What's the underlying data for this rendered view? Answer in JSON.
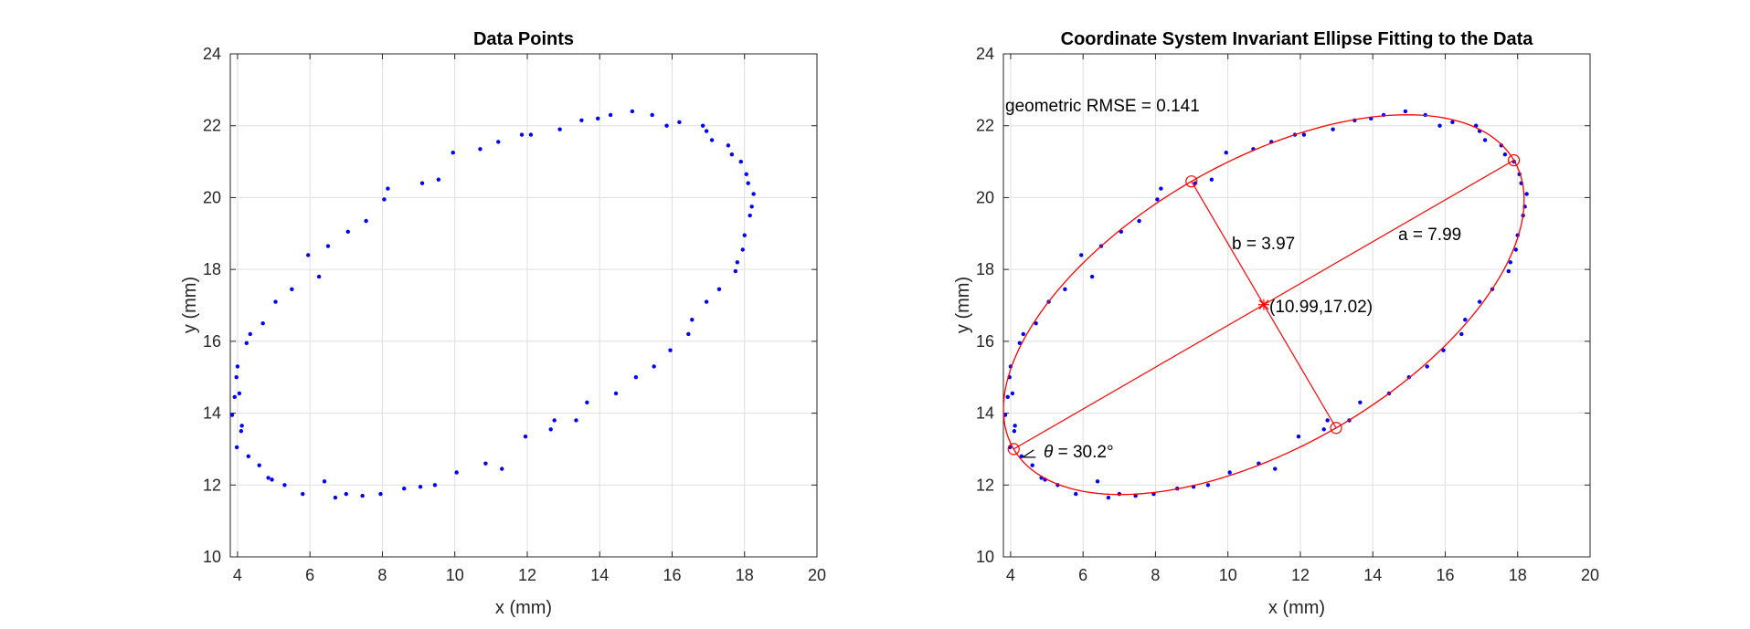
{
  "chart_data": [
    {
      "type": "scatter",
      "title": "Data Points",
      "xlabel": "x (mm)",
      "ylabel": "y (mm)",
      "xlim": [
        3.8,
        20
      ],
      "ylim": [
        10,
        24
      ],
      "xticks": [
        4,
        6,
        8,
        10,
        12,
        14,
        16,
        18,
        20
      ],
      "yticks": [
        10,
        12,
        14,
        16,
        18,
        20,
        22,
        24
      ],
      "grid": true,
      "point_color": "#0000ff",
      "points": [
        [
          3.85,
          13.95
        ],
        [
          3.92,
          14.45
        ],
        [
          3.97,
          15.0
        ],
        [
          4.0,
          15.3
        ],
        [
          4.05,
          14.55
        ],
        [
          4.1,
          13.5
        ],
        [
          4.12,
          13.65
        ],
        [
          3.98,
          13.05
        ],
        [
          4.25,
          15.95
        ],
        [
          4.35,
          16.2
        ],
        [
          4.3,
          12.8
        ],
        [
          4.6,
          12.55
        ],
        [
          4.7,
          16.5
        ],
        [
          4.85,
          12.2
        ],
        [
          4.95,
          12.15
        ],
        [
          5.05,
          17.1
        ],
        [
          5.3,
          12.0
        ],
        [
          5.5,
          17.45
        ],
        [
          5.8,
          11.75
        ],
        [
          5.95,
          18.4
        ],
        [
          6.25,
          17.8
        ],
        [
          6.4,
          12.1
        ],
        [
          6.5,
          18.65
        ],
        [
          6.7,
          11.65
        ],
        [
          7.0,
          11.75
        ],
        [
          7.05,
          19.05
        ],
        [
          7.45,
          11.7
        ],
        [
          7.55,
          19.35
        ],
        [
          7.95,
          11.75
        ],
        [
          8.05,
          19.95
        ],
        [
          8.15,
          20.25
        ],
        [
          8.6,
          11.9
        ],
        [
          9.05,
          11.95
        ],
        [
          9.1,
          20.4
        ],
        [
          9.45,
          12.0
        ],
        [
          9.55,
          20.5
        ],
        [
          9.95,
          21.25
        ],
        [
          10.05,
          12.35
        ],
        [
          10.7,
          21.35
        ],
        [
          10.85,
          12.6
        ],
        [
          11.2,
          21.55
        ],
        [
          11.3,
          12.45
        ],
        [
          11.85,
          21.75
        ],
        [
          11.95,
          13.35
        ],
        [
          12.1,
          21.75
        ],
        [
          12.65,
          13.55
        ],
        [
          12.75,
          13.8
        ],
        [
          12.9,
          21.9
        ],
        [
          13.35,
          13.8
        ],
        [
          13.5,
          22.15
        ],
        [
          13.65,
          14.3
        ],
        [
          13.95,
          22.2
        ],
        [
          14.3,
          22.3
        ],
        [
          14.45,
          14.55
        ],
        [
          14.9,
          22.4
        ],
        [
          15.0,
          15.0
        ],
        [
          15.45,
          22.3
        ],
        [
          15.5,
          15.3
        ],
        [
          15.85,
          22.0
        ],
        [
          15.95,
          15.75
        ],
        [
          16.2,
          22.1
        ],
        [
          16.45,
          16.2
        ],
        [
          16.55,
          16.6
        ],
        [
          16.85,
          22.0
        ],
        [
          16.95,
          21.85
        ],
        [
          16.95,
          17.1
        ],
        [
          17.1,
          21.6
        ],
        [
          17.3,
          17.45
        ],
        [
          17.55,
          21.45
        ],
        [
          17.65,
          21.2
        ],
        [
          17.75,
          17.95
        ],
        [
          17.8,
          18.2
        ],
        [
          17.9,
          21.0
        ],
        [
          17.95,
          18.55
        ],
        [
          18.0,
          18.95
        ],
        [
          18.05,
          20.65
        ],
        [
          18.1,
          20.4
        ],
        [
          18.15,
          19.5
        ],
        [
          18.2,
          19.75
        ],
        [
          18.25,
          20.1
        ]
      ]
    },
    {
      "type": "scatter",
      "title": "Coordinate System Invariant Ellipse Fitting to the Data",
      "xlabel": "x (mm)",
      "ylabel": "y (mm)",
      "xlim": [
        3.8,
        20
      ],
      "ylim": [
        10,
        24
      ],
      "xticks": [
        4,
        6,
        8,
        10,
        12,
        14,
        16,
        18,
        20
      ],
      "yticks": [
        10,
        12,
        14,
        16,
        18,
        20,
        22,
        24
      ],
      "grid": true,
      "point_color": "#0000ff",
      "fit_color": "#ff0000",
      "ellipse": {
        "center": [
          10.99,
          17.02
        ],
        "a": 7.99,
        "b": 3.97,
        "theta_deg": 30.2
      },
      "annotations": {
        "rmse": "geometric RMSE = 0.141",
        "a": "a = 7.99",
        "b": "b = 3.97",
        "center": "(10.99,17.02)",
        "theta_symbol": "θ",
        "theta_value": " = 30.2°"
      }
    }
  ]
}
